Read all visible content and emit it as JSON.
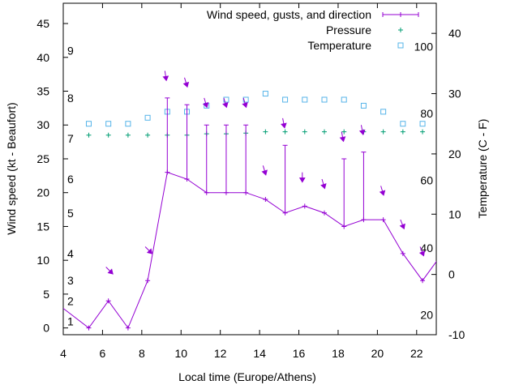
{
  "chart_data": {
    "type": "line",
    "title": "",
    "xlabel": "Local time (Europe/Athens)",
    "ylabel": "Wind speed (kt - Beaufort)",
    "y2label": "Temperature (C - F)",
    "xlim": [
      4,
      23
    ],
    "ylim": [
      -1,
      48
    ],
    "y2lim": [
      -10,
      45
    ],
    "x_ticks": [
      "4",
      "6",
      "8",
      "10",
      "12",
      "14",
      "16",
      "18",
      "20",
      "22"
    ],
    "y_ticks": [
      "0",
      "5",
      "10",
      "15",
      "20",
      "25",
      "30",
      "35",
      "40",
      "45"
    ],
    "y2_ticks": [
      "-10",
      "0",
      "10",
      "20",
      "30",
      "40"
    ],
    "beaufort_labels": [
      {
        "label": "1",
        "kt": 1.0
      },
      {
        "label": "2",
        "kt": 4.0
      },
      {
        "label": "3",
        "kt": 7.0
      },
      {
        "label": "4",
        "kt": 11.0
      },
      {
        "label": "5",
        "kt": 17.0
      },
      {
        "label": "6",
        "kt": 22.0
      },
      {
        "label": "7",
        "kt": 28.0
      },
      {
        "label": "8",
        "kt": 34.0
      },
      {
        "label": "9",
        "kt": 41.0
      }
    ],
    "fahrenheit_labels": [
      {
        "label": "20",
        "c": -6.7
      },
      {
        "label": "40",
        "c": 4.4
      },
      {
        "label": "60",
        "c": 15.6
      },
      {
        "label": "80",
        "c": 26.7
      },
      {
        "label": "100",
        "c": 37.8
      }
    ],
    "legend_position": "top-right",
    "legend": [
      {
        "label": "Wind speed, gusts, and direction",
        "color": "#9400d3"
      },
      {
        "label": "Pressure",
        "color": "#009e73"
      },
      {
        "label": "Temperature",
        "color": "#56b4e9"
      }
    ],
    "series": [
      {
        "name": "Wind speed, gusts, and direction",
        "axis": "y1",
        "color": "#9400d3",
        "x": [
          3.5,
          5.3,
          6.3,
          7.3,
          8.3,
          9.3,
          10.3,
          11.3,
          12.3,
          13.3,
          14.3,
          15.3,
          16.3,
          17.3,
          18.3,
          19.3,
          20.3,
          21.3,
          22.3,
          23.3
        ],
        "y": [
          4,
          0,
          4,
          0,
          7,
          23,
          22,
          20,
          20,
          20,
          19,
          17,
          18,
          17,
          15,
          16,
          16,
          11,
          7,
          11
        ],
        "gusts": [
          null,
          null,
          null,
          null,
          null,
          34,
          33,
          30,
          30,
          30,
          null,
          27,
          null,
          null,
          25,
          26,
          null,
          null,
          null,
          null
        ],
        "direction_arrows_x": [
          6.3,
          8.3,
          9.3,
          10.3,
          11.3,
          12.3,
          13.3,
          14.3,
          15.3,
          16.3,
          17.3,
          18.3,
          19.3,
          20.3,
          21.3,
          22.3
        ]
      },
      {
        "name": "Pressure",
        "axis": "y1",
        "color": "#009e73",
        "x": [
          5.3,
          6.3,
          7.3,
          8.3,
          9.3,
          10.3,
          11.3,
          12.3,
          13.3,
          14.3,
          15.3,
          16.3,
          17.3,
          18.3,
          19.3,
          20.3,
          21.3,
          22.3
        ],
        "y": [
          28.5,
          28.5,
          28.5,
          28.5,
          28.5,
          28.5,
          28.7,
          28.7,
          28.8,
          29,
          29,
          29,
          29,
          29,
          29,
          29,
          29,
          29
        ]
      },
      {
        "name": "Temperature",
        "axis": "y2",
        "color": "#56b4e9",
        "x": [
          5.3,
          6.3,
          7.3,
          8.3,
          9.3,
          10.3,
          11.3,
          12.3,
          13.3,
          14.3,
          15.3,
          16.3,
          17.3,
          18.3,
          19.3,
          20.3,
          21.3,
          22.3
        ],
        "y": [
          25,
          25,
          25,
          26,
          27,
          27,
          28,
          29,
          29,
          30,
          29,
          29,
          29,
          29,
          28,
          27,
          25,
          25
        ]
      }
    ]
  }
}
